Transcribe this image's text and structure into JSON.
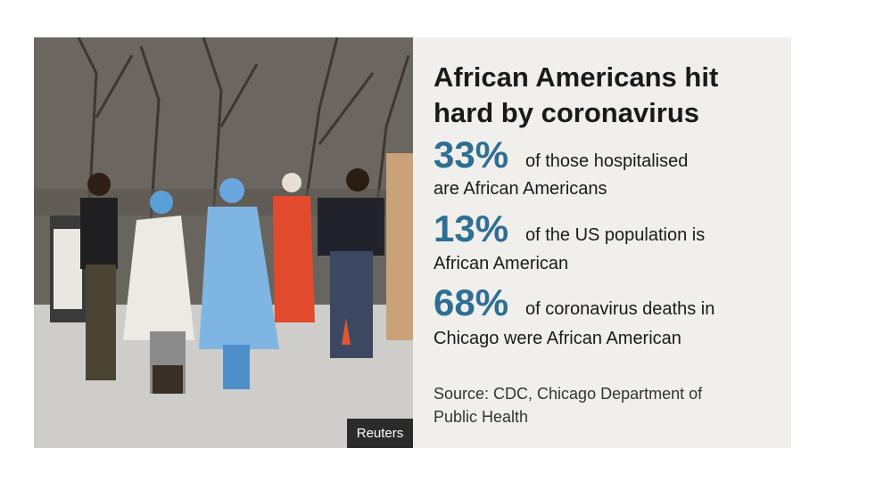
{
  "panel": {
    "title": [
      "African Americans hit",
      "hard by coronavirus"
    ],
    "stats": [
      {
        "figure": "33%",
        "line1": "of those hospitalised",
        "line2": "are African Americans"
      },
      {
        "figure": "13%",
        "line1": "of the US population is",
        "line2": "African American"
      },
      {
        "figure": "68%",
        "line1": "of coronavirus deaths in",
        "line2": "Chicago were African American"
      }
    ],
    "source": [
      "Source: CDC, Chicago Department of",
      "Public Health"
    ]
  },
  "photo": {
    "credit": "Reuters"
  }
}
